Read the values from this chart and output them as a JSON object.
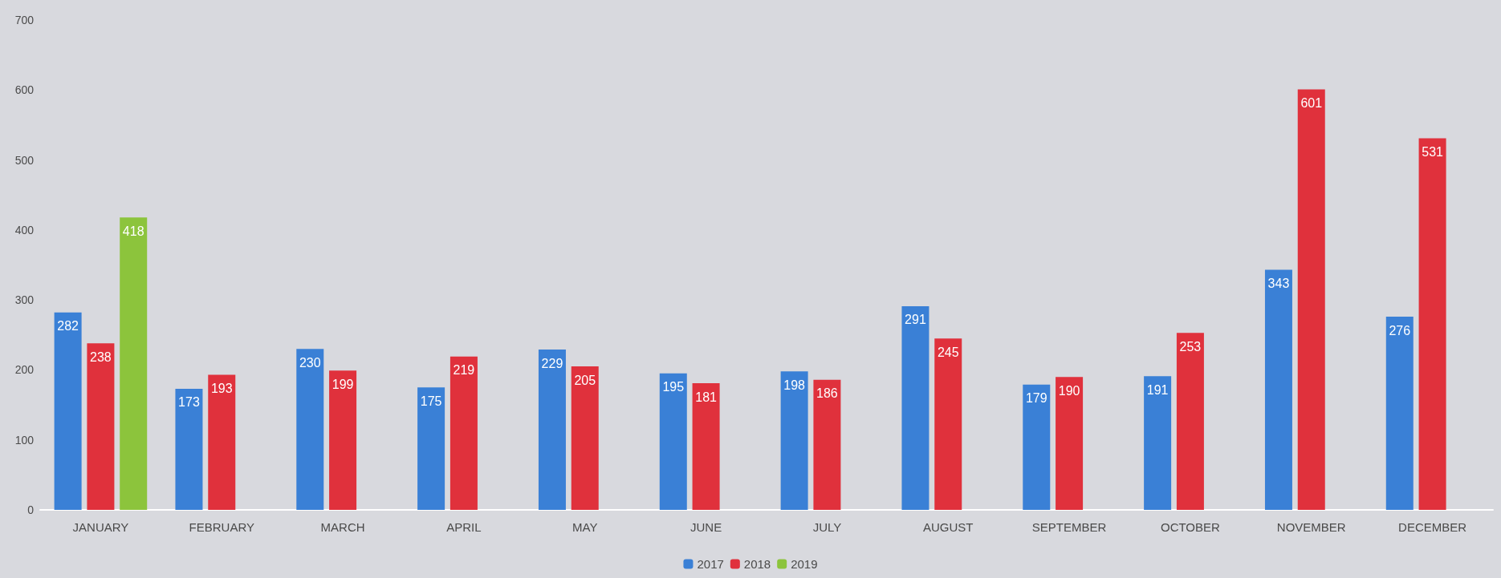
{
  "chart_data": {
    "type": "bar",
    "categories": [
      "JANUARY",
      "FEBRUARY",
      "MARCH",
      "APRIL",
      "MAY",
      "JUNE",
      "JULY",
      "AUGUST",
      "SEPTEMBER",
      "OCTOBER",
      "NOVEMBER",
      "DECEMBER"
    ],
    "series": [
      {
        "name": "2017",
        "color": "#3a80d6",
        "values": [
          282,
          173,
          230,
          175,
          229,
          195,
          198,
          291,
          179,
          191,
          343,
          276
        ]
      },
      {
        "name": "2018",
        "color": "#e0313c",
        "values": [
          238,
          193,
          199,
          219,
          205,
          181,
          186,
          245,
          190,
          253,
          601,
          531
        ]
      },
      {
        "name": "2019",
        "color": "#8cc43c",
        "values": [
          418,
          null,
          null,
          null,
          null,
          null,
          null,
          null,
          null,
          null,
          null,
          null
        ]
      }
    ],
    "ylim": [
      0,
      700
    ],
    "yticks": [
      0,
      100,
      200,
      300,
      400,
      500,
      600,
      700
    ],
    "grid": false,
    "legend": "bottom",
    "data_labels": true
  }
}
